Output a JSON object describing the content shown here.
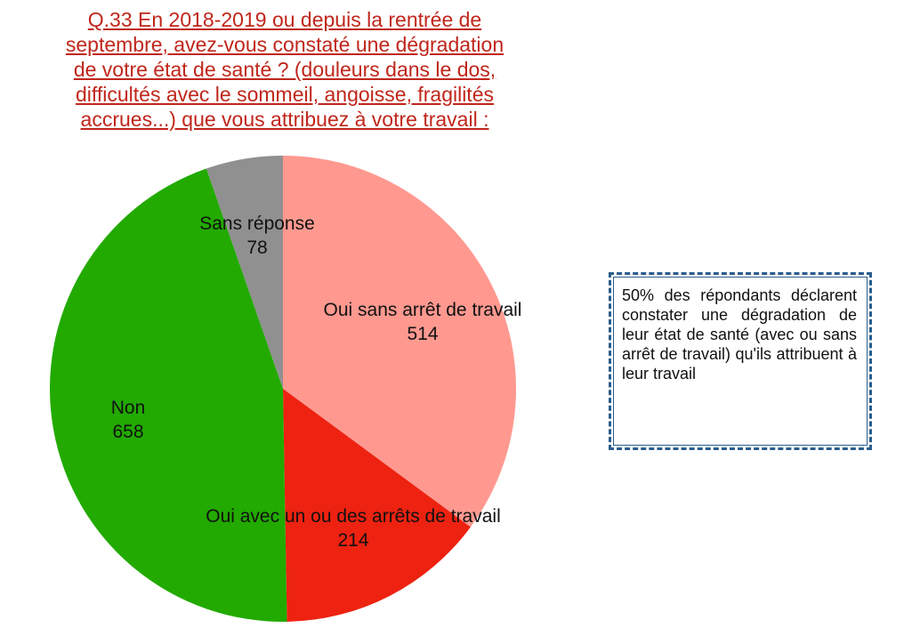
{
  "chart_data": {
    "type": "pie",
    "title_lines": [
      "Q.33 En 2018-2019 ou depuis la rentrée de",
      "septembre, avez-vous constaté une dégradation",
      "de votre état de santé ? (douleurs dans le dos,",
      "difficultés avec le sommeil, angoisse, fragilités",
      "accrues...) que vous attribuez à votre travail :"
    ],
    "slices": [
      {
        "name": "Oui sans arrêt de travail",
        "value": 514,
        "color": "#ff9990"
      },
      {
        "name": "Oui avec un ou des arrêts de travail",
        "value": 214,
        "color": "#ee2211"
      },
      {
        "name": "Non",
        "value": 658,
        "color": "#22aa00"
      },
      {
        "name": "Sans réponse",
        "value": 78,
        "color": "#909090"
      }
    ],
    "start": "12 o'clock",
    "direction": "clockwise",
    "title_color": "#c0261b"
  },
  "note": {
    "text": "50% des répondants déclarent constater une dégradation de leur état de santé (avec ou sans arrêt de travail) qu'ils attribuent à leur travail",
    "border_color": "#2a5d8c"
  }
}
